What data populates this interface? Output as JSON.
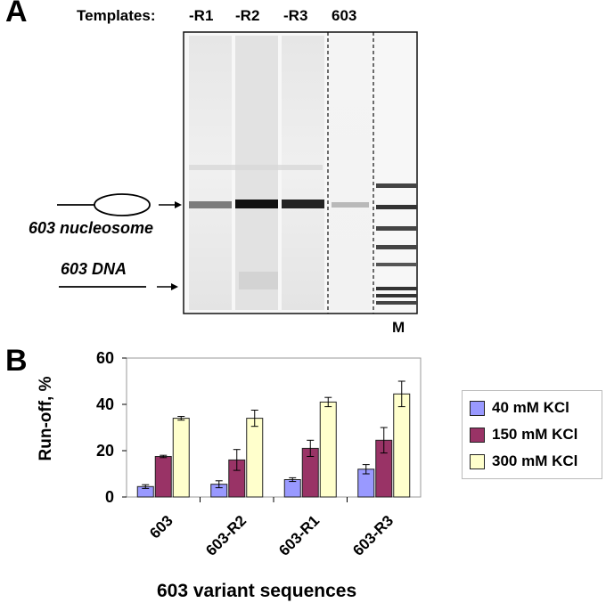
{
  "panel_a": {
    "letter": "A",
    "templates_label": "Templates:",
    "lanes": [
      "-R1",
      "-R2",
      "-R3",
      "603"
    ],
    "marker_label": "M",
    "nucleosome_label": "603 nucleosome",
    "dna_label": "603 DNA"
  },
  "panel_b": {
    "letter": "B"
  },
  "chart_data": {
    "type": "bar",
    "title": "",
    "xlabel": "603 variant sequences",
    "ylabel": "Run-off, %",
    "ylim": [
      0,
      60
    ],
    "yticks": [
      0,
      20,
      40,
      60
    ],
    "categories": [
      "603",
      "603-R2",
      "603-R1",
      "603-R3"
    ],
    "series": [
      {
        "name": "40 mM KCl",
        "color": "#9999ff",
        "values": [
          4.5,
          5.5,
          7.5,
          12
        ],
        "errors": [
          0.8,
          1.5,
          0.8,
          2
        ]
      },
      {
        "name": "150 mM KCl",
        "color": "#993366",
        "values": [
          17.5,
          16,
          21,
          24.5
        ],
        "errors": [
          0.5,
          4.5,
          3.5,
          5.5
        ]
      },
      {
        "name": "300 mM KCl",
        "color": "#ffffcc",
        "values": [
          34,
          34,
          41,
          44.5
        ],
        "errors": [
          0.8,
          3.5,
          2,
          5.5
        ]
      }
    ],
    "grid": false,
    "legend_position": "right"
  }
}
